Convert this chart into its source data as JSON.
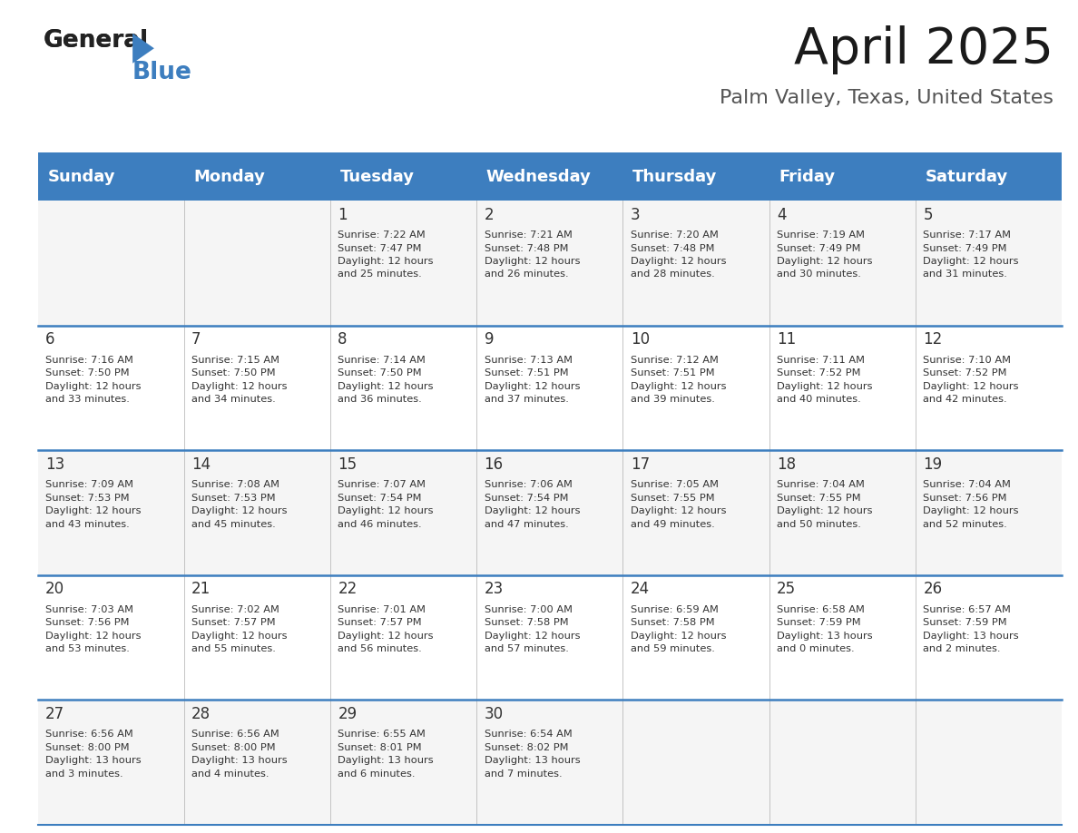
{
  "title": "April 2025",
  "subtitle": "Palm Valley, Texas, United States",
  "header_color": "#3d7ebf",
  "header_text_color": "#ffffff",
  "cell_bg_even": "#f5f5f5",
  "cell_bg_odd": "#ffffff",
  "border_color": "#3d7ebf",
  "text_color": "#333333",
  "days_of_week": [
    "Sunday",
    "Monday",
    "Tuesday",
    "Wednesday",
    "Thursday",
    "Friday",
    "Saturday"
  ],
  "weeks": [
    [
      {
        "day": "",
        "info": ""
      },
      {
        "day": "",
        "info": ""
      },
      {
        "day": "1",
        "info": "Sunrise: 7:22 AM\nSunset: 7:47 PM\nDaylight: 12 hours\nand 25 minutes."
      },
      {
        "day": "2",
        "info": "Sunrise: 7:21 AM\nSunset: 7:48 PM\nDaylight: 12 hours\nand 26 minutes."
      },
      {
        "day": "3",
        "info": "Sunrise: 7:20 AM\nSunset: 7:48 PM\nDaylight: 12 hours\nand 28 minutes."
      },
      {
        "day": "4",
        "info": "Sunrise: 7:19 AM\nSunset: 7:49 PM\nDaylight: 12 hours\nand 30 minutes."
      },
      {
        "day": "5",
        "info": "Sunrise: 7:17 AM\nSunset: 7:49 PM\nDaylight: 12 hours\nand 31 minutes."
      }
    ],
    [
      {
        "day": "6",
        "info": "Sunrise: 7:16 AM\nSunset: 7:50 PM\nDaylight: 12 hours\nand 33 minutes."
      },
      {
        "day": "7",
        "info": "Sunrise: 7:15 AM\nSunset: 7:50 PM\nDaylight: 12 hours\nand 34 minutes."
      },
      {
        "day": "8",
        "info": "Sunrise: 7:14 AM\nSunset: 7:50 PM\nDaylight: 12 hours\nand 36 minutes."
      },
      {
        "day": "9",
        "info": "Sunrise: 7:13 AM\nSunset: 7:51 PM\nDaylight: 12 hours\nand 37 minutes."
      },
      {
        "day": "10",
        "info": "Sunrise: 7:12 AM\nSunset: 7:51 PM\nDaylight: 12 hours\nand 39 minutes."
      },
      {
        "day": "11",
        "info": "Sunrise: 7:11 AM\nSunset: 7:52 PM\nDaylight: 12 hours\nand 40 minutes."
      },
      {
        "day": "12",
        "info": "Sunrise: 7:10 AM\nSunset: 7:52 PM\nDaylight: 12 hours\nand 42 minutes."
      }
    ],
    [
      {
        "day": "13",
        "info": "Sunrise: 7:09 AM\nSunset: 7:53 PM\nDaylight: 12 hours\nand 43 minutes."
      },
      {
        "day": "14",
        "info": "Sunrise: 7:08 AM\nSunset: 7:53 PM\nDaylight: 12 hours\nand 45 minutes."
      },
      {
        "day": "15",
        "info": "Sunrise: 7:07 AM\nSunset: 7:54 PM\nDaylight: 12 hours\nand 46 minutes."
      },
      {
        "day": "16",
        "info": "Sunrise: 7:06 AM\nSunset: 7:54 PM\nDaylight: 12 hours\nand 47 minutes."
      },
      {
        "day": "17",
        "info": "Sunrise: 7:05 AM\nSunset: 7:55 PM\nDaylight: 12 hours\nand 49 minutes."
      },
      {
        "day": "18",
        "info": "Sunrise: 7:04 AM\nSunset: 7:55 PM\nDaylight: 12 hours\nand 50 minutes."
      },
      {
        "day": "19",
        "info": "Sunrise: 7:04 AM\nSunset: 7:56 PM\nDaylight: 12 hours\nand 52 minutes."
      }
    ],
    [
      {
        "day": "20",
        "info": "Sunrise: 7:03 AM\nSunset: 7:56 PM\nDaylight: 12 hours\nand 53 minutes."
      },
      {
        "day": "21",
        "info": "Sunrise: 7:02 AM\nSunset: 7:57 PM\nDaylight: 12 hours\nand 55 minutes."
      },
      {
        "day": "22",
        "info": "Sunrise: 7:01 AM\nSunset: 7:57 PM\nDaylight: 12 hours\nand 56 minutes."
      },
      {
        "day": "23",
        "info": "Sunrise: 7:00 AM\nSunset: 7:58 PM\nDaylight: 12 hours\nand 57 minutes."
      },
      {
        "day": "24",
        "info": "Sunrise: 6:59 AM\nSunset: 7:58 PM\nDaylight: 12 hours\nand 59 minutes."
      },
      {
        "day": "25",
        "info": "Sunrise: 6:58 AM\nSunset: 7:59 PM\nDaylight: 13 hours\nand 0 minutes."
      },
      {
        "day": "26",
        "info": "Sunrise: 6:57 AM\nSunset: 7:59 PM\nDaylight: 13 hours\nand 2 minutes."
      }
    ],
    [
      {
        "day": "27",
        "info": "Sunrise: 6:56 AM\nSunset: 8:00 PM\nDaylight: 13 hours\nand 3 minutes."
      },
      {
        "day": "28",
        "info": "Sunrise: 6:56 AM\nSunset: 8:00 PM\nDaylight: 13 hours\nand 4 minutes."
      },
      {
        "day": "29",
        "info": "Sunrise: 6:55 AM\nSunset: 8:01 PM\nDaylight: 13 hours\nand 6 minutes."
      },
      {
        "day": "30",
        "info": "Sunrise: 6:54 AM\nSunset: 8:02 PM\nDaylight: 13 hours\nand 7 minutes."
      },
      {
        "day": "",
        "info": ""
      },
      {
        "day": "",
        "info": ""
      },
      {
        "day": "",
        "info": ""
      }
    ]
  ]
}
